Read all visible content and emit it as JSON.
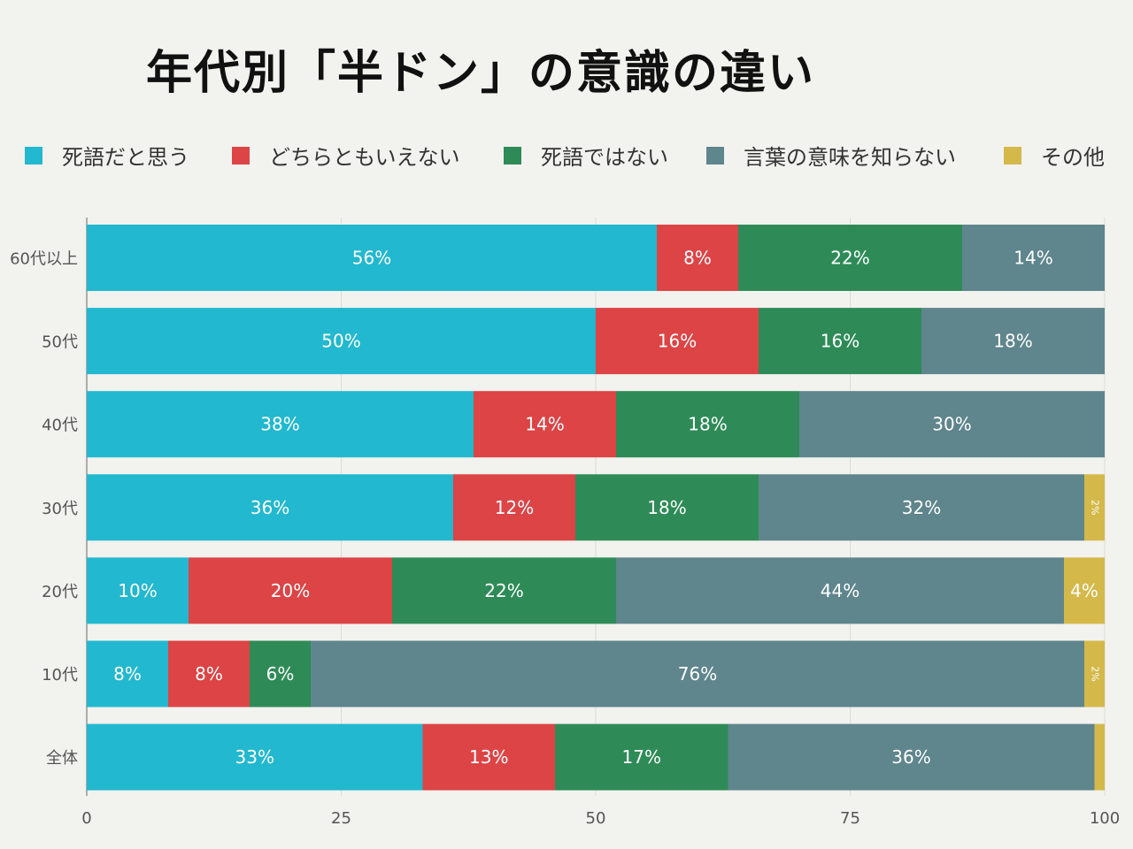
{
  "title": "年代別「半ドン」の意識の違い",
  "legend": [
    {
      "name": "死語だと思う",
      "color": "#22b8cf"
    },
    {
      "name": "どちらともいえない",
      "color": "#dc4446"
    },
    {
      "name": "死語ではない",
      "color": "#2e8b57"
    },
    {
      "name": "言葉の意味を知らない",
      "color": "#5f858d"
    },
    {
      "name": "その他",
      "color": "#d4b94a"
    }
  ],
  "chart_data": {
    "type": "bar",
    "orientation": "horizontal",
    "stacked": true,
    "title": "年代別「半ドン」の意識の違い",
    "xlabel": "",
    "ylabel": "",
    "xlim": [
      0,
      100
    ],
    "xticks": [
      0,
      25,
      50,
      75,
      100
    ],
    "grid": true,
    "legend_position": "top",
    "categories": [
      "60代以上",
      "50代",
      "40代",
      "30代",
      "20代",
      "10代",
      "全体"
    ],
    "series": [
      {
        "name": "死語だと思う",
        "color": "#22b8cf",
        "values": [
          56,
          50,
          38,
          36,
          10,
          8,
          33
        ]
      },
      {
        "name": "どちらともいえない",
        "color": "#dc4446",
        "values": [
          8,
          16,
          14,
          12,
          20,
          8,
          13
        ]
      },
      {
        "name": "死語ではない",
        "color": "#2e8b57",
        "values": [
          22,
          16,
          18,
          18,
          22,
          6,
          17
        ]
      },
      {
        "name": "言葉の意味を知らない",
        "color": "#5f858d",
        "values": [
          14,
          18,
          30,
          32,
          44,
          76,
          36
        ]
      },
      {
        "name": "その他",
        "color": "#d4b94a",
        "values": [
          0,
          0,
          0,
          2,
          4,
          2,
          1
        ]
      }
    ],
    "data_labels": [
      [
        "56%",
        "50%",
        "38%",
        "36%",
        "10%",
        "8%",
        "33%"
      ],
      [
        "8%",
        "16%",
        "14%",
        "12%",
        "20%",
        "8%",
        "13%"
      ],
      [
        "22%",
        "16%",
        "18%",
        "18%",
        "22%",
        "6%",
        "17%"
      ],
      [
        "14%",
        "18%",
        "30%",
        "32%",
        "44%",
        "76%",
        "36%"
      ],
      [
        "",
        "",
        "",
        "2%",
        "4%",
        "2%",
        ""
      ]
    ]
  }
}
